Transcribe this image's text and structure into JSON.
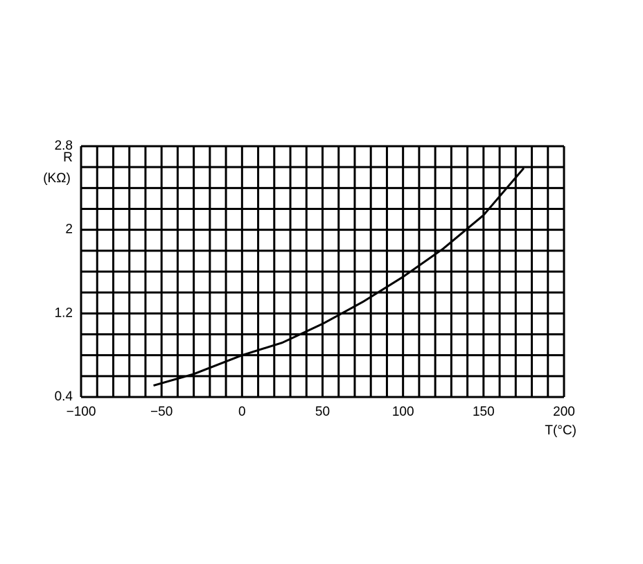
{
  "chart_data": {
    "type": "line",
    "ylabel": [
      "R",
      "(KΩ)"
    ],
    "xlabel": "T(°C)",
    "x": [
      -55,
      -30,
      0,
      25,
      50,
      75,
      100,
      125,
      150,
      165,
      175
    ],
    "series": [
      {
        "color": "#000000",
        "values": [
          0.51,
          0.62,
          0.8,
          0.92,
          1.1,
          1.31,
          1.55,
          1.82,
          2.14,
          2.41,
          2.59
        ]
      }
    ],
    "xlim": [
      -100,
      200
    ],
    "ylim": [
      0.4,
      2.8
    ],
    "xticks": [
      {
        "value": -100,
        "label": "−100"
      },
      {
        "value": -50,
        "label": "−50"
      },
      0,
      50,
      100,
      150,
      200
    ],
    "yticks": [
      0.4,
      1.2,
      2,
      2.8
    ],
    "xgrid": [
      -100,
      -90,
      -80,
      -70,
      -60,
      -50,
      -40,
      -30,
      -20,
      -10,
      0,
      10,
      20,
      30,
      40,
      50,
      60,
      70,
      80,
      90,
      100,
      110,
      120,
      130,
      140,
      150,
      160,
      170,
      180,
      190,
      200
    ],
    "ygrid": [
      0.4,
      0.6,
      0.8,
      1.0,
      1.2,
      1.4,
      1.6,
      1.8,
      2.0,
      2.2,
      2.4,
      2.6,
      2.8
    ],
    "grid": true
  }
}
